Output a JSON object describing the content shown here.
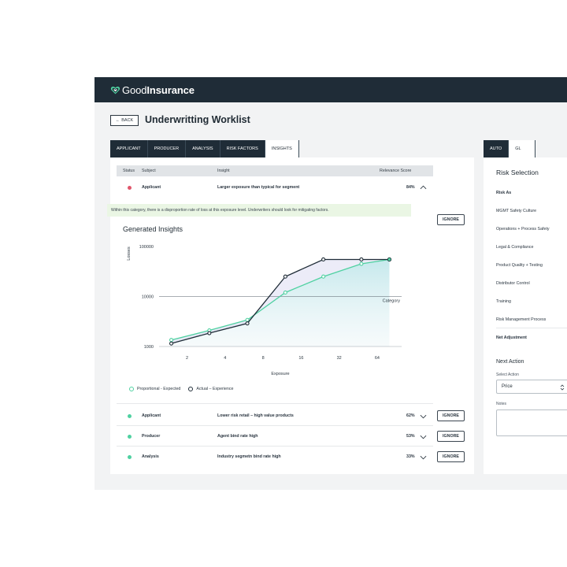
{
  "brand": {
    "good": "Good",
    "insurance": "Insurance"
  },
  "page": {
    "back_label": "BACK",
    "title": "Underwritting Worklist"
  },
  "tabs": [
    "APPLICANT",
    "PRODUCER",
    "ANALYSIS",
    "RISK FACTORS",
    "INSIGHTS"
  ],
  "active_tab": "INSIGHTS",
  "right_tabs": [
    "AUTO",
    "GL"
  ],
  "table": {
    "headers": {
      "status": "Status",
      "subject": "Subject",
      "insight": "Insight",
      "score": "Relevance Score"
    },
    "expanded_row": {
      "status_color": "#e0566b",
      "subject": "Applicant",
      "insight": "Larger exposure than typical for segment",
      "score": "84%"
    },
    "note": "Within this category, there is a disproportion rate of loss at this exposure level. Underwriters should look for mitigating factors.",
    "rows": [
      {
        "status_color": "#4fd1a1",
        "subject": "Applicant",
        "insight": "Lower risk retail – high value products",
        "score": "62%"
      },
      {
        "status_color": "#4fd1a1",
        "subject": "Producer",
        "insight": "Agent bind rate high",
        "score": "53%"
      },
      {
        "status_color": "#4fd1a1",
        "subject": "Analysis",
        "insight": "Industry segmetn bind rate high",
        "score": "33%"
      }
    ],
    "ignore_label": "IGNORE"
  },
  "insights": {
    "title": "Generated Insights",
    "legend": {
      "expected": "Proportional - Expected",
      "actual": "Actual – Experience"
    }
  },
  "chart_data": {
    "type": "line",
    "x": [
      1.5,
      3,
      6,
      12,
      24,
      48,
      80
    ],
    "x_ticks": [
      "2",
      "4",
      "8",
      "16",
      "32",
      "64"
    ],
    "xlabel": "Exposure",
    "ylabel": "Losses",
    "y_scale": "log",
    "y_ticks": [
      "1000",
      "10000",
      "100000"
    ],
    "ylim": [
      1000,
      100000
    ],
    "reference_line": {
      "y": 10000,
      "label": "Category"
    },
    "series": [
      {
        "name": "Proportional - Expected",
        "color": "#4fd1a1",
        "values": [
          1350,
          2100,
          3400,
          12000,
          25000,
          45000,
          55000
        ]
      },
      {
        "name": "Actual – Experience",
        "color": "#1f2c37",
        "values": [
          1150,
          1850,
          2900,
          25000,
          55000,
          55000,
          55000
        ]
      }
    ],
    "grid": false,
    "legend_position": "bottom-left"
  },
  "risk_selection": {
    "title": "Risk Selection",
    "items": [
      "Risk As",
      "MGMT Safety Culture",
      "Operations + Process Safety",
      "Legal & Compliance",
      "Product Quality + Testing",
      "Distributor Control",
      "Training",
      "Risk Management Process",
      "Net Adjustment"
    ]
  },
  "next_action": {
    "title": "Next Action",
    "select_label": "Select Action",
    "select_value": "Price",
    "notes_label": "Notes"
  }
}
